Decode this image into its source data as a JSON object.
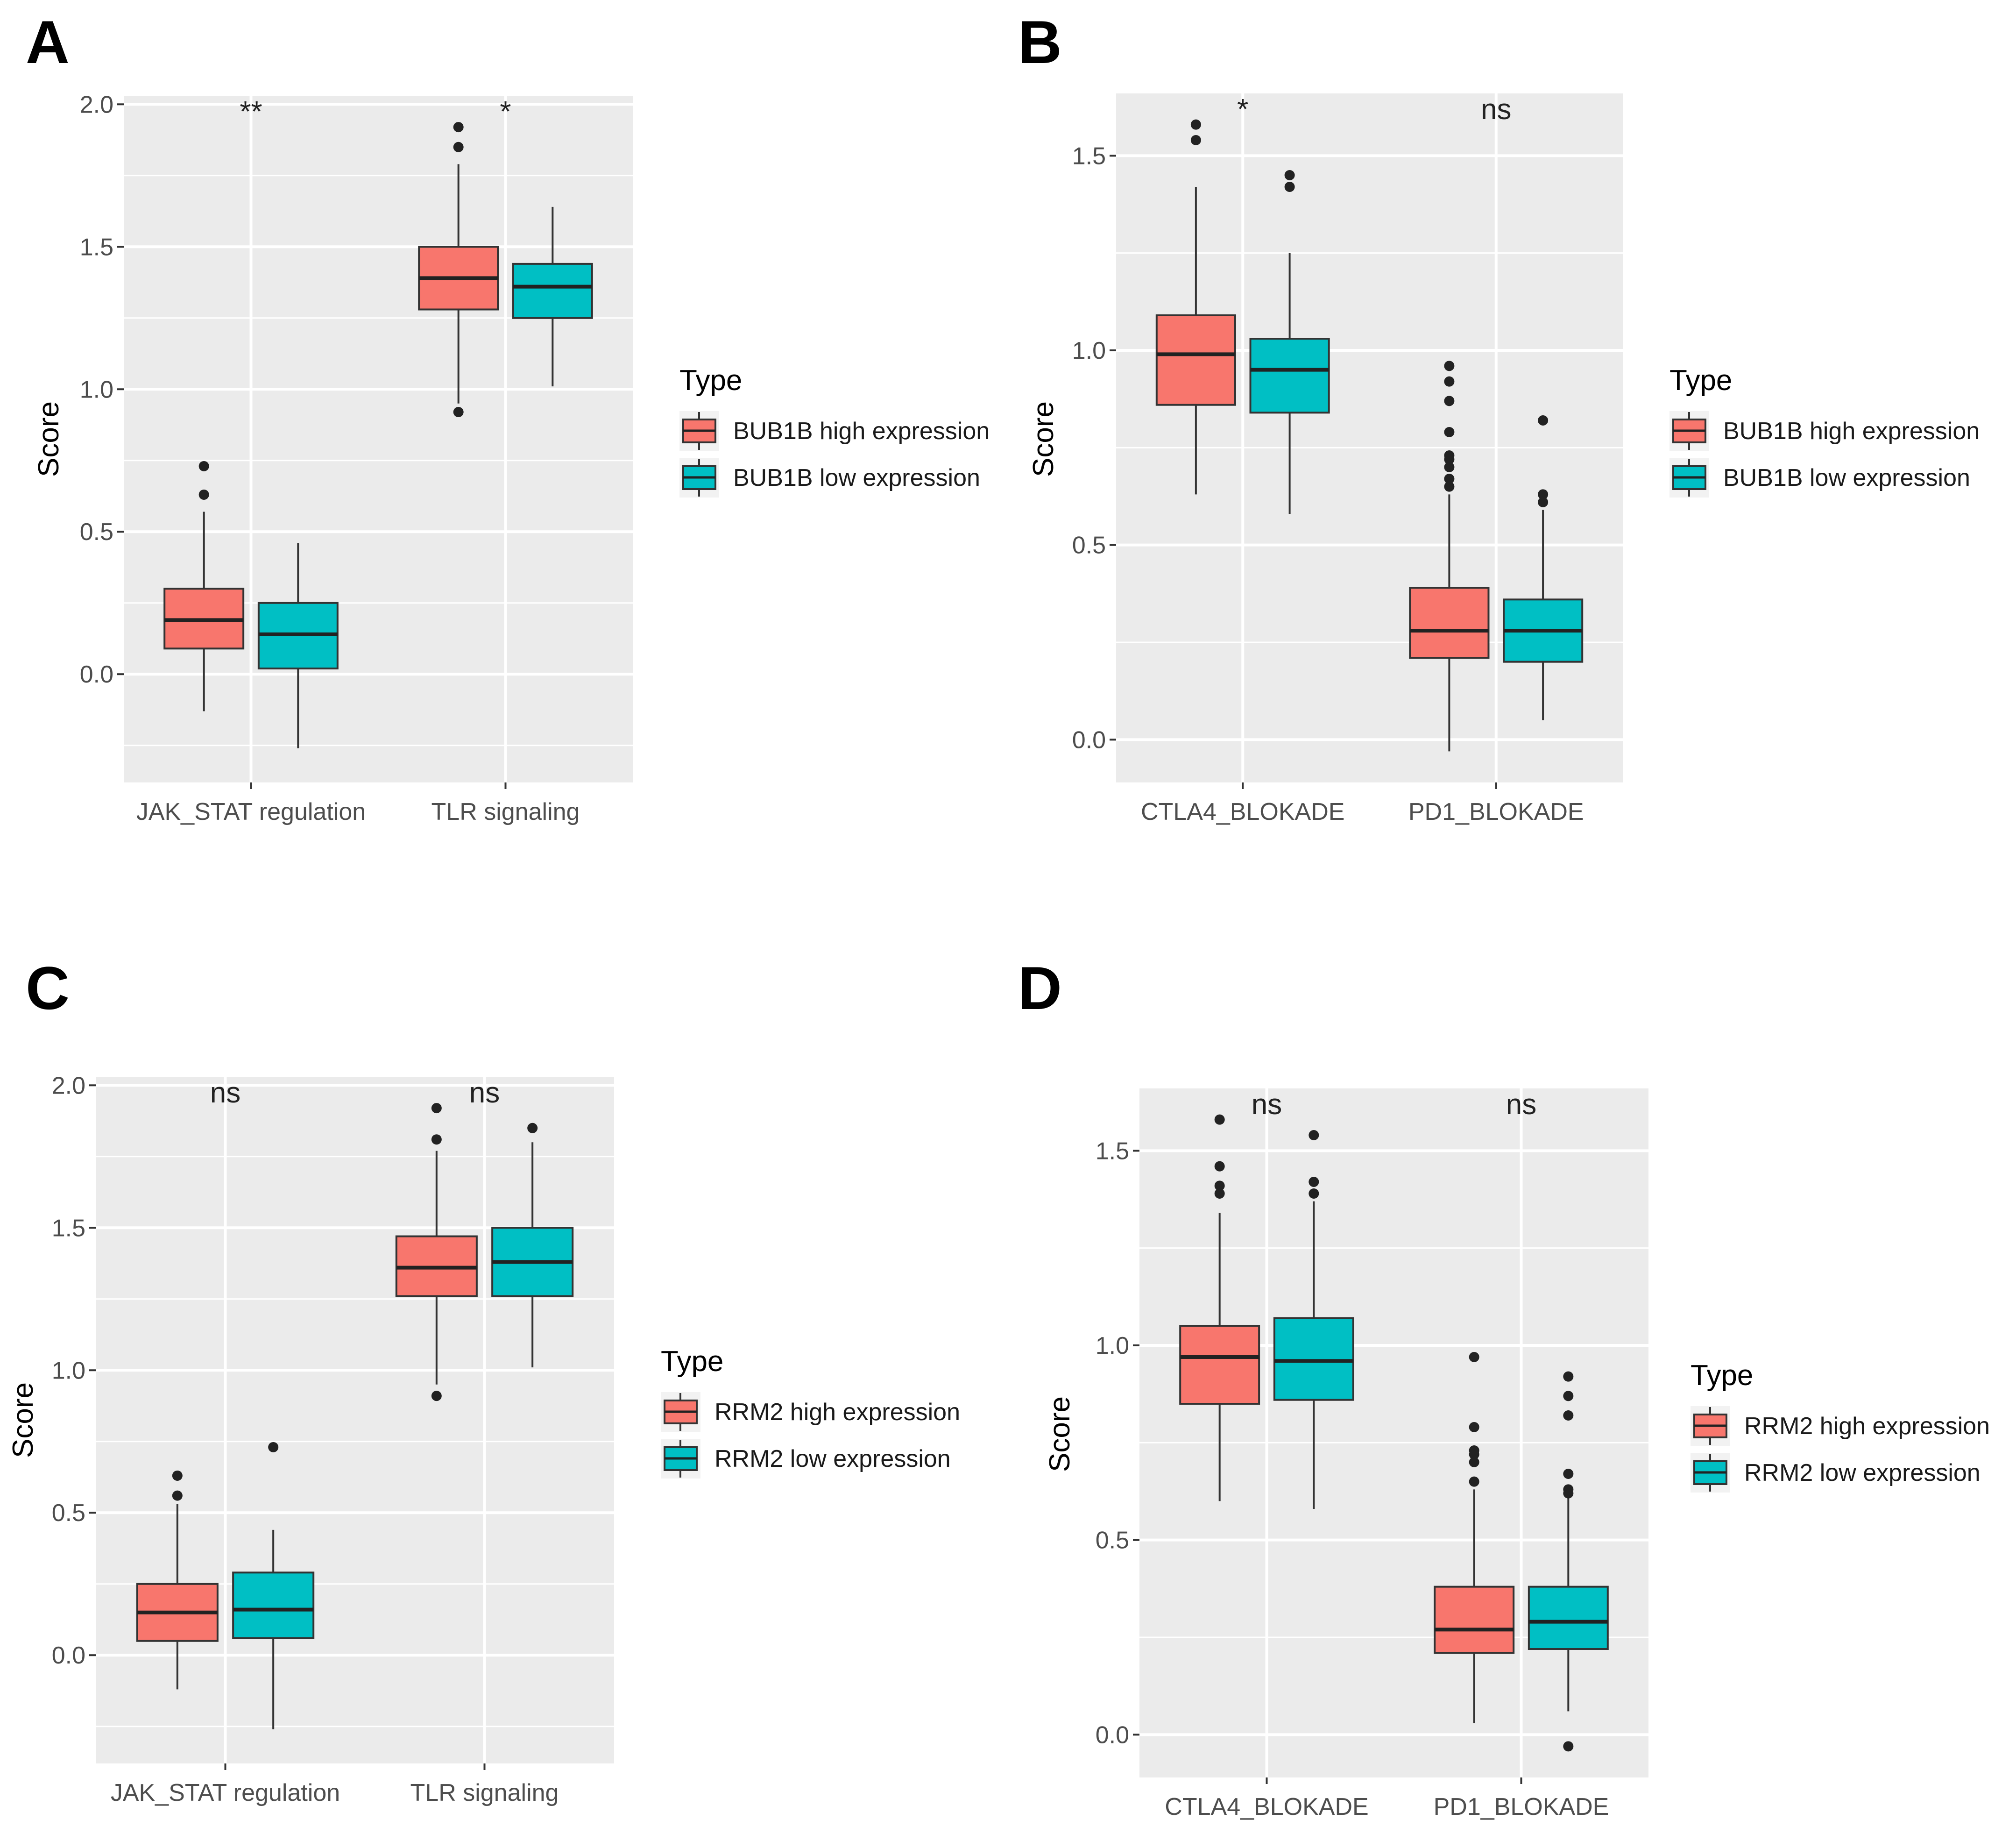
{
  "colors": {
    "high": "#F8766D",
    "low": "#00BFC4",
    "panel_bg": "#EBEBEB",
    "grid": "#FFFFFF"
  },
  "chart_data": [
    {
      "panel": "A",
      "type": "boxplot",
      "ylabel": "Score",
      "xlabel": "",
      "ylim": [
        -0.38,
        2.03
      ],
      "yticks": [
        0.0,
        0.5,
        1.0,
        1.5,
        2.0
      ],
      "ytick_labels": [
        "0.0",
        "0.5",
        "1.0",
        "1.5",
        "2.0"
      ],
      "categories": [
        "JAK_STAT regulation",
        "TLR signaling"
      ],
      "significance": [
        "**",
        "*"
      ],
      "legend": {
        "title": "Type",
        "entries": [
          "BUB1B high expression",
          "BUB1B low expression"
        ]
      },
      "series": [
        {
          "name": "BUB1B high expression",
          "color_key": "high",
          "boxes": [
            {
              "whisker_low": -0.13,
              "q1": 0.09,
              "median": 0.19,
              "q3": 0.3,
              "whisker_high": 0.57,
              "outliers": [
                0.63,
                0.73
              ]
            },
            {
              "whisker_low": 0.95,
              "q1": 1.28,
              "median": 1.39,
              "q3": 1.5,
              "whisker_high": 1.79,
              "outliers": [
                0.92,
                1.85,
                1.92
              ]
            }
          ]
        },
        {
          "name": "BUB1B low expression",
          "color_key": "low",
          "boxes": [
            {
              "whisker_low": -0.26,
              "q1": 0.02,
              "median": 0.14,
              "q3": 0.25,
              "whisker_high": 0.46,
              "outliers": []
            },
            {
              "whisker_low": 1.01,
              "q1": 1.25,
              "median": 1.36,
              "q3": 1.44,
              "whisker_high": 1.64,
              "outliers": []
            }
          ]
        }
      ]
    },
    {
      "panel": "B",
      "type": "boxplot",
      "ylabel": "Score",
      "xlabel": "",
      "ylim": [
        -0.11,
        1.66
      ],
      "yticks": [
        0.0,
        0.5,
        1.0,
        1.5
      ],
      "ytick_labels": [
        "0.0",
        "0.5",
        "1.0",
        "1.5"
      ],
      "categories": [
        "CTLA4_BLOKADE",
        "PD1_BLOKADE"
      ],
      "significance": [
        "*",
        "ns"
      ],
      "legend": {
        "title": "Type",
        "entries": [
          "BUB1B high expression",
          "BUB1B low expression"
        ]
      },
      "series": [
        {
          "name": "BUB1B high expression",
          "color_key": "high",
          "boxes": [
            {
              "whisker_low": 0.63,
              "q1": 0.86,
              "median": 0.99,
              "q3": 1.09,
              "whisker_high": 1.42,
              "outliers": [
                1.54,
                1.58
              ]
            },
            {
              "whisker_low": -0.03,
              "q1": 0.21,
              "median": 0.28,
              "q3": 0.39,
              "whisker_high": 0.63,
              "outliers": [
                0.65,
                0.67,
                0.7,
                0.72,
                0.73,
                0.79,
                0.87,
                0.92,
                0.96
              ]
            }
          ]
        },
        {
          "name": "BUB1B low expression",
          "color_key": "low",
          "boxes": [
            {
              "whisker_low": 0.58,
              "q1": 0.84,
              "median": 0.95,
              "q3": 1.03,
              "whisker_high": 1.25,
              "outliers": [
                1.42,
                1.45
              ]
            },
            {
              "whisker_low": 0.05,
              "q1": 0.2,
              "median": 0.28,
              "q3": 0.36,
              "whisker_high": 0.59,
              "outliers": [
                0.61,
                0.63,
                0.82
              ]
            }
          ]
        }
      ]
    },
    {
      "panel": "C",
      "type": "boxplot",
      "ylabel": "Score",
      "xlabel": "",
      "ylim": [
        -0.38,
        2.03
      ],
      "yticks": [
        0.0,
        0.5,
        1.0,
        1.5,
        2.0
      ],
      "ytick_labels": [
        "0.0",
        "0.5",
        "1.0",
        "1.5",
        "2.0"
      ],
      "categories": [
        "JAK_STAT regulation",
        "TLR signaling"
      ],
      "significance": [
        "ns",
        "ns"
      ],
      "legend": {
        "title": "Type",
        "entries": [
          "RRM2 high expression",
          "RRM2 low expression"
        ]
      },
      "series": [
        {
          "name": "RRM2 high expression",
          "color_key": "high",
          "boxes": [
            {
              "whisker_low": -0.12,
              "q1": 0.05,
              "median": 0.15,
              "q3": 0.25,
              "whisker_high": 0.53,
              "outliers": [
                0.56,
                0.63
              ]
            },
            {
              "whisker_low": 0.95,
              "q1": 1.26,
              "median": 1.36,
              "q3": 1.47,
              "whisker_high": 1.77,
              "outliers": [
                0.91,
                1.81,
                1.92
              ]
            }
          ]
        },
        {
          "name": "RRM2 low expression",
          "color_key": "low",
          "boxes": [
            {
              "whisker_low": -0.26,
              "q1": 0.06,
              "median": 0.16,
              "q3": 0.29,
              "whisker_high": 0.44,
              "outliers": [
                0.73
              ]
            },
            {
              "whisker_low": 1.01,
              "q1": 1.26,
              "median": 1.38,
              "q3": 1.5,
              "whisker_high": 1.8,
              "outliers": [
                1.85
              ]
            }
          ]
        }
      ]
    },
    {
      "panel": "D",
      "type": "boxplot",
      "ylabel": "Score",
      "xlabel": "",
      "ylim": [
        -0.11,
        1.66
      ],
      "yticks": [
        0.0,
        0.5,
        1.0,
        1.5
      ],
      "ytick_labels": [
        "0.0",
        "0.5",
        "1.0",
        "1.5"
      ],
      "categories": [
        "CTLA4_BLOKADE",
        "PD1_BLOKADE"
      ],
      "significance": [
        "ns",
        "ns"
      ],
      "legend": {
        "title": "Type",
        "entries": [
          "RRM2 high expression",
          "RRM2 low expression"
        ]
      },
      "series": [
        {
          "name": "RRM2 high expression",
          "color_key": "high",
          "boxes": [
            {
              "whisker_low": 0.6,
              "q1": 0.85,
              "median": 0.97,
              "q3": 1.05,
              "whisker_high": 1.34,
              "outliers": [
                1.39,
                1.41,
                1.46,
                1.58
              ]
            },
            {
              "whisker_low": 0.03,
              "q1": 0.21,
              "median": 0.27,
              "q3": 0.38,
              "whisker_high": 0.63,
              "outliers": [
                0.65,
                0.7,
                0.72,
                0.73,
                0.79,
                0.97
              ]
            }
          ]
        },
        {
          "name": "RRM2 low expression",
          "color_key": "low",
          "boxes": [
            {
              "whisker_low": 0.58,
              "q1": 0.86,
              "median": 0.96,
              "q3": 1.07,
              "whisker_high": 1.37,
              "outliers": [
                1.39,
                1.42,
                1.54
              ]
            },
            {
              "whisker_low": 0.06,
              "q1": 0.22,
              "median": 0.29,
              "q3": 0.38,
              "whisker_high": 0.61,
              "outliers": [
                0.62,
                0.63,
                0.67,
                0.82,
                0.87,
                0.92,
                -0.03
              ]
            }
          ]
        }
      ]
    }
  ]
}
